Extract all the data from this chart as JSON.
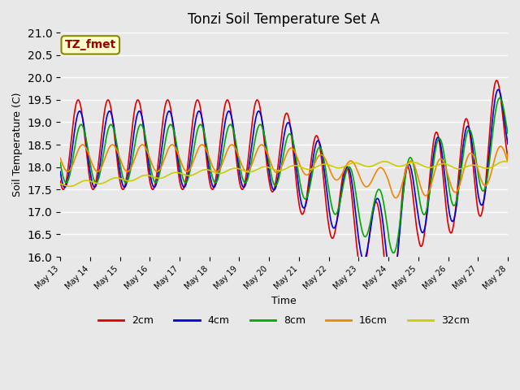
{
  "title": "Tonzi Soil Temperature Set A",
  "xlabel": "Time",
  "ylabel": "Soil Temperature (C)",
  "ylim": [
    16.0,
    21.0
  ],
  "yticks": [
    16.0,
    16.5,
    17.0,
    17.5,
    18.0,
    18.5,
    19.0,
    19.5,
    20.0,
    20.5,
    21.0
  ],
  "background_color": "#e8e8e8",
  "annotation_text": "TZ_fmet",
  "annotation_bg": "#ffffcc",
  "annotation_border": "#888800",
  "annotation_text_color": "#990000",
  "series_colors": {
    "2cm": "#dd0000",
    "4cm": "#0000dd",
    "8cm": "#00aa00",
    "16cm": "#ee8800",
    "32cm": "#cccc00"
  },
  "n_days": 15,
  "x_tick_labels": [
    "May 13",
    "May 14",
    "May 15",
    "May 16",
    "May 17",
    "May 18",
    "May 19",
    "May 20",
    "May 21",
    "May 22",
    "May 23",
    "May 24",
    "May 25",
    "May 26",
    "May 27",
    "May 28"
  ]
}
